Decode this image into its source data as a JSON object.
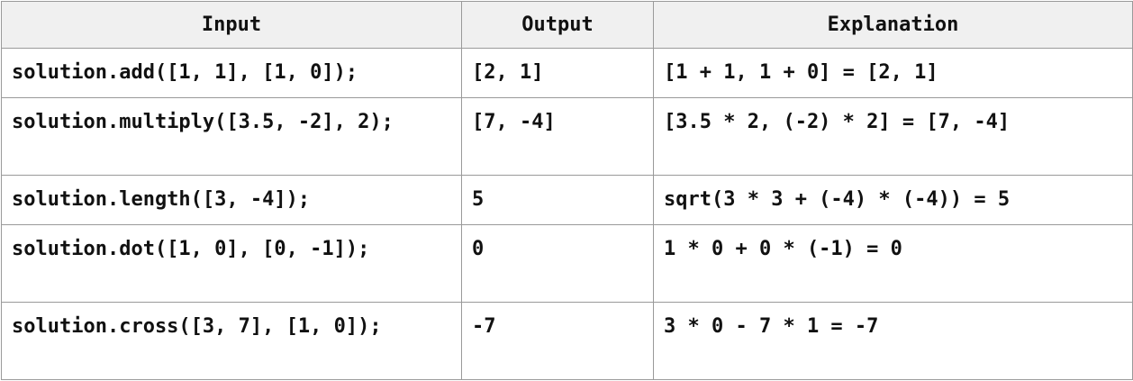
{
  "table": {
    "headers": [
      "Input",
      "Output",
      "Explanation"
    ],
    "rows": [
      [
        "solution.add([1, 1], [1, 0]);",
        "[2, 1]",
        "[1 + 1, 1 + 0] = [2, 1]"
      ],
      [
        "solution.multiply([3.5, -2], 2);",
        "[7, -4]",
        "[3.5 * 2, (-2) * 2] = [7, -4]"
      ],
      [
        "solution.length([3, -4]);",
        "5",
        "sqrt(3 * 3 + (-4) * (-4)) = 5"
      ],
      [
        "solution.dot([1, 0], [0, -1]);",
        "0",
        "1 * 0 + 0 * (-1) = 0"
      ],
      [
        "solution.cross([3, 7], [1, 0]);",
        "-7",
        "3 * 0 - 7 * 1 = -7"
      ]
    ]
  }
}
